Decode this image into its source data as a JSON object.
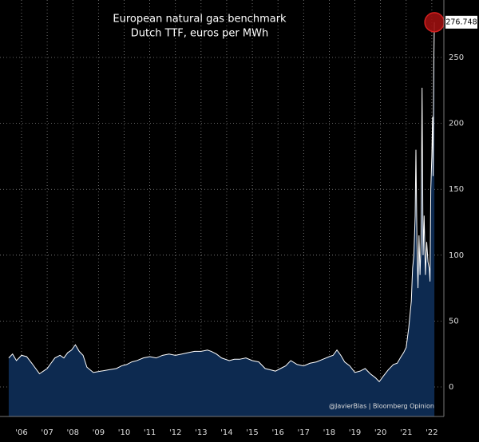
{
  "chart_data": {
    "type": "area",
    "title": "European natural gas benchmark",
    "subtitle": "Dutch TTF, euros per MWh",
    "annotation": "@JavierBlas | Bloomberg Opinion",
    "x": [
      2006.0,
      2006.15,
      2006.3,
      2006.5,
      2006.7,
      2006.9,
      2007.05,
      2007.2,
      2007.35,
      2007.5,
      2007.65,
      2007.8,
      2008.0,
      2008.15,
      2008.3,
      2008.45,
      2008.6,
      2008.75,
      2008.9,
      2009.05,
      2009.3,
      2009.6,
      2009.9,
      2010.2,
      2010.4,
      2010.6,
      2010.8,
      2011.0,
      2011.25,
      2011.5,
      2011.75,
      2012.0,
      2012.25,
      2012.5,
      2012.75,
      2013.0,
      2013.25,
      2013.5,
      2013.75,
      2013.9,
      2014.1,
      2014.3,
      2014.6,
      2014.8,
      2015.0,
      2015.25,
      2015.5,
      2015.75,
      2016.0,
      2016.2,
      2016.4,
      2016.6,
      2016.8,
      2017.0,
      2017.25,
      2017.5,
      2017.75,
      2018.0,
      2018.25,
      2018.5,
      2018.65,
      2018.8,
      2018.95,
      2019.1,
      2019.3,
      2019.5,
      2019.7,
      2019.9,
      2020.1,
      2020.3,
      2020.45,
      2020.6,
      2020.8,
      2021.0,
      2021.15,
      2021.3,
      2021.4,
      2021.5,
      2021.6,
      2021.7,
      2021.75,
      2021.8,
      2021.85,
      2021.88,
      2021.92,
      2021.96,
      2022.0,
      2022.04,
      2022.08,
      2022.12,
      2022.16,
      2022.2,
      2022.25,
      2022.3,
      2022.35,
      2022.4,
      2022.43,
      2022.46,
      2022.5,
      2022.53,
      2022.55,
      2022.58,
      2022.6
    ],
    "values": [
      22,
      25,
      20,
      24,
      23,
      18,
      14,
      10,
      12,
      14,
      18,
      22,
      24,
      22,
      26,
      28,
      32,
      27,
      24,
      15,
      11,
      12,
      13,
      14,
      16,
      17,
      19,
      20,
      22,
      23,
      22,
      24,
      25,
      24,
      25,
      26,
      27,
      27,
      28,
      27,
      25,
      22,
      20,
      21,
      21,
      22,
      20,
      19,
      14,
      13,
      12,
      14,
      16,
      20,
      17,
      16,
      18,
      19,
      21,
      23,
      24,
      28,
      24,
      19,
      16,
      11,
      12,
      14,
      10,
      7,
      4,
      8,
      13,
      17,
      18,
      23,
      26,
      30,
      45,
      65,
      90,
      100,
      130,
      180,
      110,
      75,
      115,
      85,
      110,
      227,
      100,
      130,
      85,
      110,
      95,
      90,
      80,
      150,
      175,
      205,
      160,
      250,
      276.748
    ],
    "color": "#0d2a50",
    "line_color": "#ffffff",
    "marker_color": "#9b1010",
    "xlim": [
      2005.66,
      2022.97
    ],
    "ylim": [
      -22.4,
      293.6
    ],
    "xticks": [
      {
        "value": 2006.5,
        "label": "'06"
      },
      {
        "value": 2007.5,
        "label": "'07"
      },
      {
        "value": 2008.5,
        "label": "'08"
      },
      {
        "value": 2009.5,
        "label": "'09"
      },
      {
        "value": 2010.5,
        "label": "'10"
      },
      {
        "value": 2011.5,
        "label": "'11"
      },
      {
        "value": 2012.5,
        "label": "'12"
      },
      {
        "value": 2013.5,
        "label": "'13"
      },
      {
        "value": 2014.5,
        "label": "'14"
      },
      {
        "value": 2015.5,
        "label": "'15"
      },
      {
        "value": 2016.5,
        "label": "'16"
      },
      {
        "value": 2017.5,
        "label": "'17"
      },
      {
        "value": 2018.5,
        "label": "'18"
      },
      {
        "value": 2019.5,
        "label": "'19"
      },
      {
        "value": 2020.5,
        "label": "'20"
      },
      {
        "value": 2021.5,
        "label": "'21"
      },
      {
        "value": 2022.5,
        "label": "'22"
      }
    ],
    "yticks": [
      0,
      50,
      100,
      150,
      200,
      250
    ],
    "grid": true
  }
}
